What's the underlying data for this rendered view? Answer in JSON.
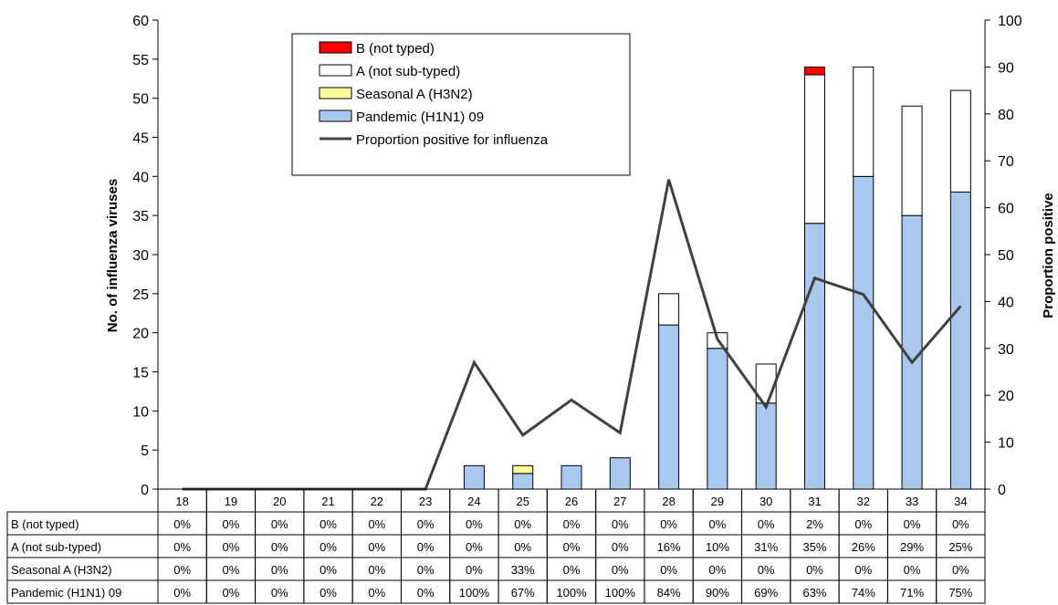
{
  "chart_data": {
    "type": "bar",
    "stacked": true,
    "categories": [
      "18",
      "19",
      "20",
      "21",
      "22",
      "23",
      "24",
      "25",
      "26",
      "27",
      "28",
      "29",
      "30",
      "31",
      "32",
      "33",
      "34"
    ],
    "series": [
      {
        "name": "Pandemic (H1N1) 09",
        "color": "#a8c8ee",
        "values": [
          0,
          0,
          0,
          0,
          0,
          0,
          3,
          2,
          3,
          4,
          21,
          18,
          11,
          34,
          40,
          35,
          38
        ]
      },
      {
        "name": "Seasonal A (H3N2)",
        "color": "#ffff99",
        "values": [
          0,
          0,
          0,
          0,
          0,
          0,
          0,
          1,
          0,
          0,
          0,
          0,
          0,
          0,
          0,
          0,
          0
        ]
      },
      {
        "name": "A (not sub-typed)",
        "color": "#ffffff",
        "values": [
          0,
          0,
          0,
          0,
          0,
          0,
          0,
          0,
          0,
          0,
          4,
          2,
          5,
          19,
          14,
          14,
          13
        ]
      },
      {
        "name": "B (not typed)",
        "color": "#ff0000",
        "values": [
          0,
          0,
          0,
          0,
          0,
          0,
          0,
          0,
          0,
          0,
          0,
          0,
          0,
          1,
          0,
          0,
          0
        ]
      }
    ],
    "line": {
      "name": "Proportion positive for influenza",
      "color": "#404040",
      "values": [
        0,
        0,
        0,
        0,
        0,
        0,
        27,
        11.5,
        19,
        12,
        66,
        32,
        17.5,
        45,
        41.5,
        27,
        39
      ]
    },
    "ylabel": "No. of influenza viruses",
    "ylabel_right": "Proportion positive",
    "ylim": [
      0,
      60
    ],
    "ylim_right": [
      0,
      100
    ],
    "yticks": [
      "0",
      "5",
      "10",
      "15",
      "20",
      "25",
      "30",
      "35",
      "40",
      "45",
      "50",
      "55",
      "60"
    ],
    "yticks_right": [
      "0",
      "10",
      "20",
      "30",
      "40",
      "50",
      "60",
      "70",
      "80",
      "90",
      "100"
    ],
    "legend": {
      "position": "top-center",
      "entries": [
        "B (not typed)",
        "A (not sub-typed)",
        "Seasonal A (H3N2)",
        "Pandemic (H1N1) 09",
        "Proportion positive for influenza"
      ]
    },
    "data_table": {
      "rows": [
        {
          "label": "B (not typed)",
          "values": [
            "0%",
            "0%",
            "0%",
            "0%",
            "0%",
            "0%",
            "0%",
            "0%",
            "0%",
            "0%",
            "0%",
            "0%",
            "0%",
            "2%",
            "0%",
            "0%",
            "0%"
          ]
        },
        {
          "label": "A (not sub-typed)",
          "values": [
            "0%",
            "0%",
            "0%",
            "0%",
            "0%",
            "0%",
            "0%",
            "0%",
            "0%",
            "0%",
            "16%",
            "10%",
            "31%",
            "35%",
            "26%",
            "29%",
            "25%"
          ]
        },
        {
          "label": "Seasonal A (H3N2)",
          "values": [
            "0%",
            "0%",
            "0%",
            "0%",
            "0%",
            "0%",
            "0%",
            "33%",
            "0%",
            "0%",
            "0%",
            "0%",
            "0%",
            "0%",
            "0%",
            "0%",
            "0%"
          ]
        },
        {
          "label": "Pandemic (H1N1) 09",
          "values": [
            "0%",
            "0%",
            "0%",
            "0%",
            "0%",
            "0%",
            "100%",
            "67%",
            "100%",
            "100%",
            "84%",
            "90%",
            "69%",
            "63%",
            "74%",
            "71%",
            "75%"
          ]
        }
      ]
    },
    "grid": false
  }
}
